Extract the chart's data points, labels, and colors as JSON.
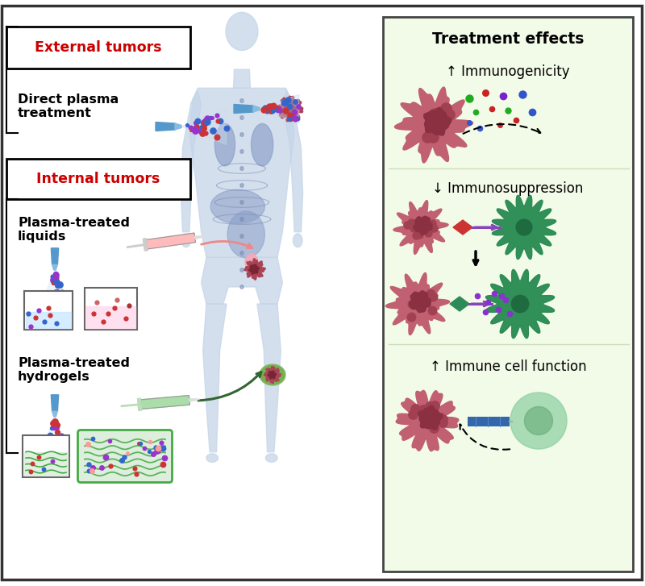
{
  "title": "Treatment effects",
  "left_labels": {
    "external": "External tumors",
    "external_sub": "Direct plasma\ntreatment",
    "internal": "Internal tumors",
    "internal_sub": "Plasma-treated\nliquids",
    "hydrogel_sub": "Plasma-treated\nhydrogels"
  },
  "right_labels": {
    "immunogenicity": "↑ Immunogenicity",
    "immunosuppression": "↓ Immunosuppression",
    "immune_function": "↑ Immune cell function"
  },
  "colors": {
    "red_label": "#CC0000",
    "black": "#000000",
    "white": "#FFFFFF",
    "bg_right": "#F0F8E8",
    "body_blue": "#B8C8DC",
    "body_blue_dark": "#8FA8C0",
    "tumor_red": "#A0404A",
    "tumor_dark": "#7A2030",
    "green_cell": "#2E8B57",
    "plasma_blue": "#6699CC",
    "dots_red": "#CC3333",
    "dots_blue": "#3366CC",
    "dots_purple": "#8833CC",
    "dots_green": "#33AA33",
    "hydrogel_green": "#55AA55",
    "hydrogel_bg": "#DDEECC",
    "liquid_pink": "#FFCCCC",
    "syringe_pink": "#FFB0B0",
    "syringe_green": "#AADDAA",
    "arrow_pink": "#FF9999",
    "arrow_green": "#336633",
    "box_border": "#333333"
  },
  "figure_size": [
    8.0,
    7.27
  ],
  "dpi": 100
}
